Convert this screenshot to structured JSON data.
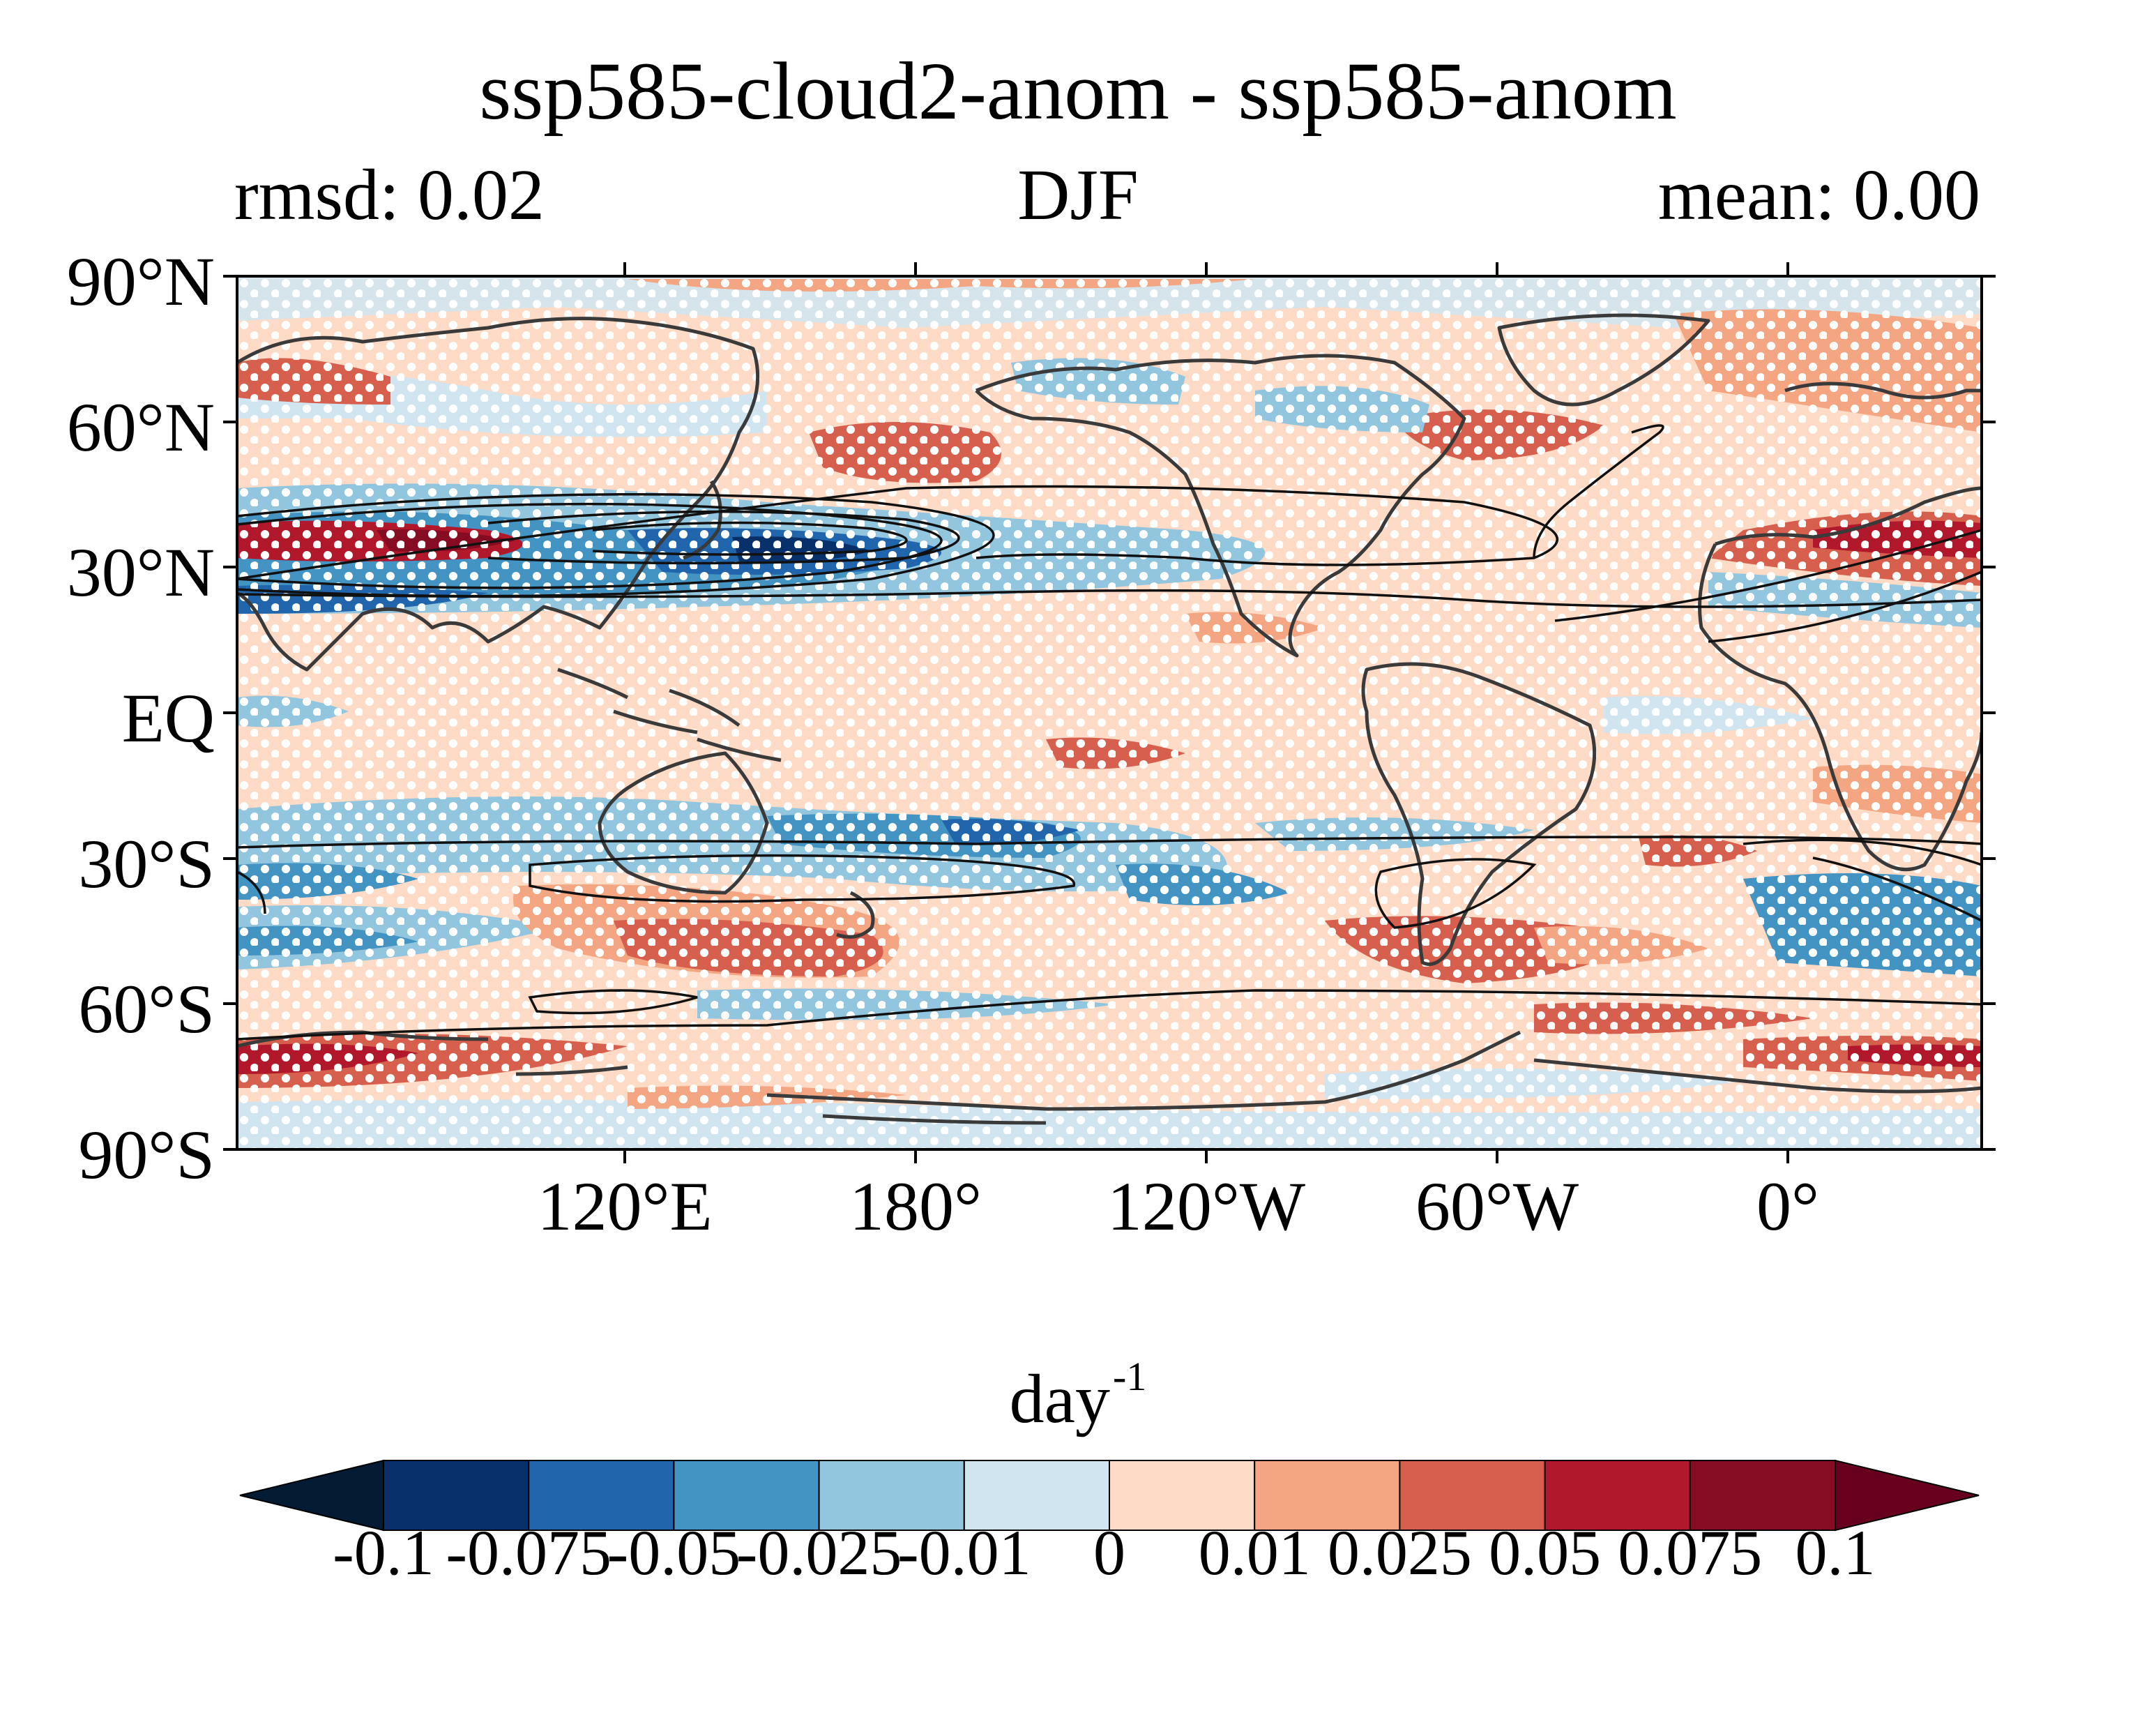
{
  "title": "ssp585-cloud2-anom - ssp585-anom",
  "subtitle_left": "rmsd: 0.02",
  "subtitle_center": "DJF",
  "subtitle_right": "mean: 0.00",
  "lat_labels": [
    "90°N",
    "60°N",
    "30°N",
    "EQ",
    "30°S",
    "60°S",
    "90°S"
  ],
  "lon_labels": [
    "120°E",
    "180°",
    "120°W",
    "60°W",
    "0°"
  ],
  "colorbar": {
    "unit_base": "day",
    "unit_exponent": "-1",
    "tick_labels": [
      "-0.1",
      "-0.075",
      "-0.05",
      "-0.025",
      "-0.01",
      "0",
      "0.01",
      "0.025",
      "0.05",
      "0.075",
      "0.1"
    ],
    "colors": [
      "#08306b",
      "#2166ac",
      "#4393c3",
      "#92c5de",
      "#d1e5f0",
      "#fddbc7",
      "#f4a582",
      "#d6604d",
      "#b2182b",
      "#850c22"
    ],
    "extend_low_color": "#051a33",
    "extend_high_color": "#67001f"
  },
  "map_data": {
    "projection": "PlateCarree",
    "central_longitude": 150,
    "extent": {
      "lon": [
        -180,
        180
      ],
      "lat": [
        -90,
        90
      ]
    },
    "field": "difference of anomaly",
    "stippling": "white dots",
    "overlay": "black contour lines",
    "coastlines": "dark gray"
  }
}
